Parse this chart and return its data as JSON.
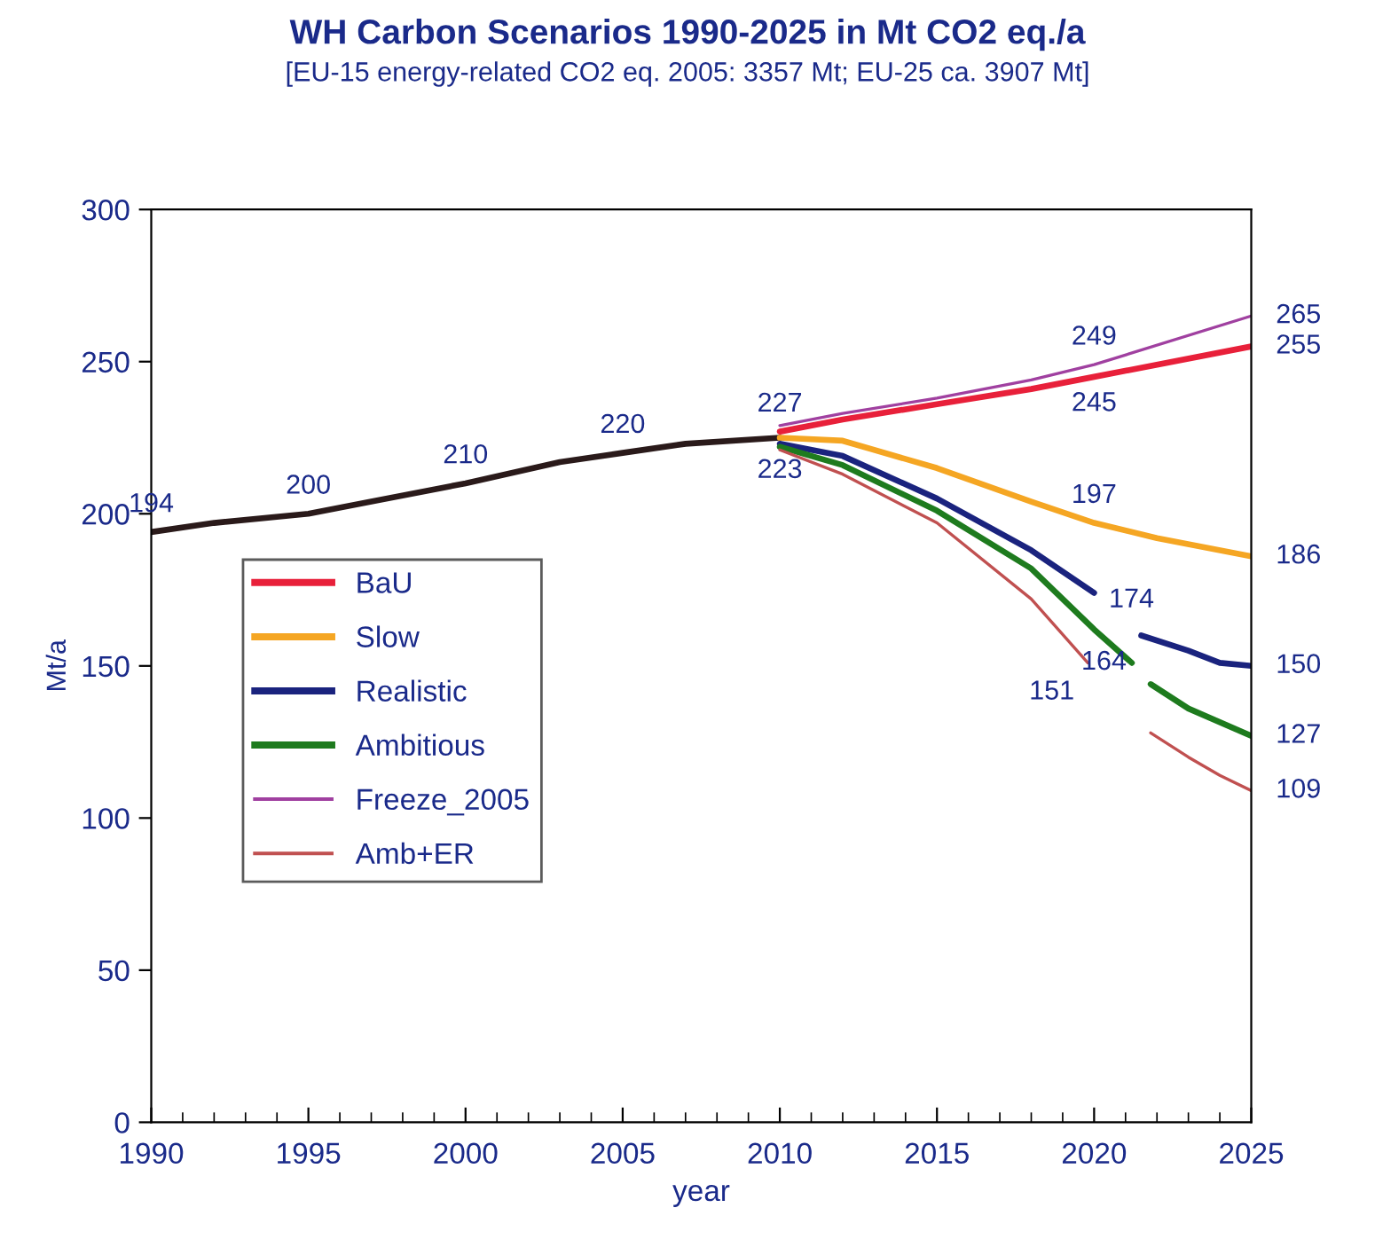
{
  "chart_data": {
    "type": "line",
    "title": "WH Carbon Scenarios 1990-2025 in Mt CO2 eq./a",
    "subtitle": "[EU-15 energy-related CO2 eq. 2005: 3357 Mt; EU-25 ca. 3907 Mt]",
    "xlabel": "year",
    "ylabel": "Mt/a",
    "xlim": [
      1990,
      2025
    ],
    "xticks": [
      1990,
      1995,
      2000,
      2005,
      2010,
      2015,
      2020,
      2025
    ],
    "ylim": [
      0,
      300
    ],
    "yticks": [
      0,
      50,
      100,
      150,
      200,
      250,
      300
    ],
    "grid": false,
    "legend": "left",
    "marker": "none",
    "line_style": "solid",
    "series": [
      {
        "color": "#2a1a1a",
        "x": [
          1990,
          1992,
          1995,
          1997,
          2000,
          2003,
          2005,
          2007,
          2010
        ],
        "values": [
          194,
          197,
          200,
          204,
          210,
          217,
          220,
          223,
          225
        ]
      },
      {
        "name": "BaU",
        "color": "#e8203a",
        "x": [
          2010,
          2012,
          2015,
          2018,
          2020,
          2025
        ],
        "values": [
          227,
          231,
          236,
          241,
          245,
          255
        ]
      },
      {
        "name": "Slow",
        "color": "#f5a623",
        "x": [
          2010,
          2012,
          2015,
          2018,
          2020,
          2022,
          2025
        ],
        "values": [
          225,
          224,
          215,
          204,
          197,
          192,
          186
        ]
      },
      {
        "name": "Realistic",
        "color": "#1a237e",
        "x": [
          2010,
          2012,
          2015,
          2018,
          2020,
          2021,
          2021.5,
          2023,
          2024,
          2025
        ],
        "values": [
          223,
          219,
          205,
          188,
          174,
          null,
          160,
          155,
          151,
          150
        ]
      },
      {
        "name": "Ambitious",
        "color": "#1e7b1e",
        "x": [
          2010,
          2012,
          2015,
          2018,
          2020,
          2021.2,
          2021.5,
          2021.8,
          2023,
          2025
        ],
        "values": [
          222,
          216,
          201,
          182,
          162,
          151,
          null,
          144,
          136,
          127
        ]
      },
      {
        "name": "Freeze_2005",
        "color": "#a040a0",
        "x": [
          2010,
          2012,
          2015,
          2018,
          2020,
          2025
        ],
        "values": [
          229,
          233,
          238,
          244,
          249,
          265
        ]
      },
      {
        "name": "Amb+ER",
        "color": "#c05050",
        "x": [
          2010,
          2012,
          2015,
          2018,
          2019.8,
          2021,
          2021.8,
          2023,
          2024,
          2025
        ],
        "values": [
          221,
          213,
          197,
          172,
          151,
          null,
          128,
          120,
          114,
          109
        ]
      }
    ],
    "annotations": [
      {
        "text": "194",
        "x": 1990,
        "y": 194
      },
      {
        "text": "200",
        "x": 1995,
        "y": 200
      },
      {
        "text": "210",
        "x": 2000,
        "y": 210
      },
      {
        "text": "220",
        "x": 2005,
        "y": 220
      },
      {
        "text": "227",
        "x": 2010,
        "y": 227
      },
      {
        "text": "223",
        "x": 2010,
        "y": 223
      },
      {
        "text": "249",
        "x": 2020,
        "y": 249
      },
      {
        "text": "245",
        "x": 2020,
        "y": 245
      },
      {
        "text": "197",
        "x": 2020,
        "y": 197
      },
      {
        "text": "174",
        "x": 2020,
        "y": 174
      },
      {
        "text": "164",
        "x": 2020,
        "y": 164
      },
      {
        "text": "151",
        "x": 2020,
        "y": 151
      },
      {
        "text": "265",
        "x": 2025,
        "y": 265
      },
      {
        "text": "255",
        "x": 2025,
        "y": 255
      },
      {
        "text": "186",
        "x": 2025,
        "y": 186
      },
      {
        "text": "150",
        "x": 2025,
        "y": 150
      },
      {
        "text": "127",
        "x": 2025,
        "y": 127
      },
      {
        "text": "109",
        "x": 2025,
        "y": 109
      }
    ]
  }
}
